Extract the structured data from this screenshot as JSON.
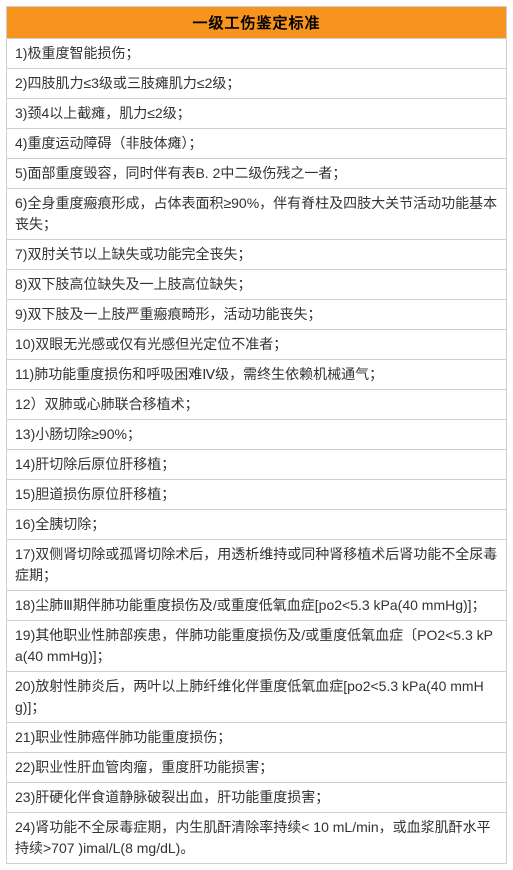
{
  "header": {
    "title": "一级工伤鉴定标准",
    "bg_color": "#f7941d",
    "text_color": "#000000",
    "font_size": 15,
    "font_weight": "bold"
  },
  "table": {
    "border_color": "#cfcfcf",
    "cell_font_size": 14,
    "cell_text_color": "#333333",
    "background_color": "#ffffff"
  },
  "rows": [
    "1)极重度智能损伤；",
    "2)四肢肌力≤3级或三肢瘫肌力≤2级；",
    "3)颈4以上截瘫，肌力≤2级；",
    "4)重度运动障碍（非肢体瘫）；",
    "5)面部重度毁容，同时伴有表B. 2中二级伤残之一者；",
    "6)全身重度瘢痕形成，占体表面积≥90%，伴有脊柱及四肢大关节活动功能基本丧失；",
    "7)双肘关节以上缺失或功能完全丧失；",
    "8)双下肢高位缺失及一上肢高位缺失；",
    "9)双下肢及一上肢严重瘢痕畸形，活动功能丧失；",
    "10)双眼无光感或仅有光感但光定位不准者；",
    "11)肺功能重度损伤和呼吸困难Ⅳ级，需终生依赖机械通气；",
    "12）双肺或心肺联合移植术；",
    "13)小肠切除≥90%；",
    "14)肝切除后原位肝移植；",
    "15)胆道损伤原位肝移植；",
    "16)全胰切除；",
    "17)双侧肾切除或孤肾切除术后，用透析维持或同种肾移植术后肾功能不全尿毒症期；",
    "18)尘肺Ⅲ期伴肺功能重度损伤及/或重度低氧血症[po2<5.3 kPa(40 mmHg)]；",
    "19)其他职业性肺部疾患，伴肺功能重度损伤及/或重度低氧血症〔PO2<5.3 kPa(40 mmHg)]；",
    "20)放射性肺炎后，两叶以上肺纤维化伴重度低氧血症[po2<5.3 kPa(40 mmHg)]；",
    "21)职业性肺癌伴肺功能重度损伤；",
    "22)职业性肝血管肉瘤，重度肝功能损害；",
    "23)肝硬化伴食道静脉破裂出血，肝功能重度损害；",
    "24)肾功能不全尿毒症期，内生肌酐清除率持续< 10 mL/min，或血浆肌酐水平持续>707 )imal/L(8 mg/dL)。"
  ]
}
